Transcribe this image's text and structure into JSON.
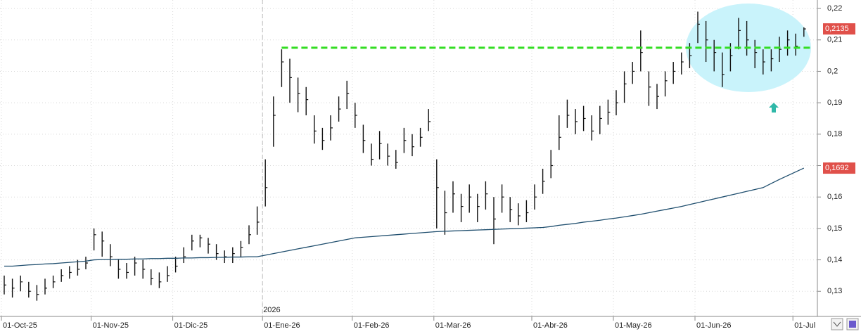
{
  "chart_data": {
    "type": "hlc",
    "categories": [
      "01-Oct-25",
      null,
      null,
      null,
      null,
      null,
      null,
      null,
      null,
      null,
      null,
      "01-Nov-25",
      null,
      null,
      null,
      null,
      null,
      null,
      null,
      null,
      null,
      "01-Dic-25",
      null,
      null,
      null,
      null,
      null,
      null,
      null,
      null,
      null,
      null,
      "01-Ene-26",
      null,
      null,
      null,
      null,
      null,
      null,
      null,
      null,
      null,
      null,
      "01-Feb-26",
      null,
      null,
      null,
      null,
      null,
      null,
      null,
      null,
      null,
      "01-Mar-26",
      null,
      null,
      null,
      null,
      null,
      null,
      null,
      null,
      null,
      null,
      null,
      "01-Abr-26",
      null,
      null,
      null,
      null,
      null,
      null,
      null,
      null,
      null,
      "01-May-26",
      null,
      null,
      null,
      null,
      null,
      null,
      null,
      null,
      null,
      "01-Jun-26",
      null,
      null,
      null,
      null,
      null,
      null,
      null,
      null,
      null,
      null,
      null,
      "01-Jul",
      null
    ],
    "series": [
      {
        "color": "#111111",
        "high": [
          0.135,
          0.134,
          0.135,
          0.133,
          0.132,
          0.134,
          0.135,
          0.137,
          0.138,
          0.14,
          0.141,
          0.15,
          0.149,
          0.145,
          0.14,
          0.139,
          0.141,
          0.14,
          0.137,
          0.136,
          0.138,
          0.141,
          0.144,
          0.148,
          0.148,
          0.147,
          0.145,
          0.143,
          0.144,
          0.146,
          0.151,
          0.157,
          0.172,
          0.192,
          0.207,
          0.204,
          0.198,
          0.195,
          0.186,
          0.182,
          0.186,
          0.192,
          0.197,
          0.19,
          0.183,
          0.177,
          0.181,
          0.177,
          0.175,
          0.182,
          0.18,
          0.182,
          0.188,
          0.172,
          0.162,
          0.165,
          0.161,
          0.164,
          0.161,
          0.165,
          0.16,
          0.164,
          0.16,
          0.158,
          0.159,
          0.164,
          0.169,
          0.175,
          0.186,
          0.191,
          0.188,
          0.189,
          0.186,
          0.189,
          0.191,
          0.194,
          0.2,
          0.203,
          0.213,
          0.2,
          0.196,
          0.2,
          0.203,
          0.206,
          0.209,
          0.219,
          0.216,
          0.21,
          0.206,
          0.209,
          0.217,
          0.216,
          0.21,
          0.207,
          0.207,
          0.211,
          0.213,
          0.212,
          0.214
        ],
        "low": [
          0.129,
          0.128,
          0.13,
          0.128,
          0.127,
          0.129,
          0.131,
          0.133,
          0.134,
          0.135,
          0.137,
          0.143,
          0.141,
          0.138,
          0.134,
          0.134,
          0.135,
          0.134,
          0.132,
          0.131,
          0.133,
          0.136,
          0.139,
          0.143,
          0.144,
          0.142,
          0.14,
          0.139,
          0.139,
          0.141,
          0.145,
          0.148,
          0.157,
          0.176,
          0.195,
          0.19,
          0.187,
          0.186,
          0.177,
          0.175,
          0.178,
          0.184,
          0.188,
          0.182,
          0.174,
          0.17,
          0.172,
          0.17,
          0.169,
          0.174,
          0.173,
          0.176,
          0.181,
          0.15,
          0.148,
          0.155,
          0.152,
          0.155,
          0.152,
          0.156,
          0.145,
          0.155,
          0.152,
          0.151,
          0.152,
          0.156,
          0.161,
          0.166,
          0.175,
          0.182,
          0.18,
          0.181,
          0.178,
          0.18,
          0.183,
          0.186,
          0.19,
          0.196,
          0.2,
          0.189,
          0.188,
          0.192,
          0.196,
          0.199,
          0.201,
          0.209,
          0.203,
          0.2,
          0.195,
          0.2,
          0.207,
          0.205,
          0.201,
          0.199,
          0.2,
          0.203,
          0.205,
          0.205,
          0.211
        ],
        "close": [
          0.132,
          0.131,
          0.133,
          0.13,
          0.129,
          0.131,
          0.133,
          0.135,
          0.136,
          0.137,
          0.139,
          0.148,
          0.146,
          0.141,
          0.137,
          0.136,
          0.139,
          0.137,
          0.134,
          0.133,
          0.135,
          0.138,
          0.141,
          0.146,
          0.147,
          0.145,
          0.142,
          0.141,
          0.142,
          0.144,
          0.148,
          0.152,
          0.163,
          0.186,
          0.203,
          0.198,
          0.193,
          0.191,
          0.181,
          0.178,
          0.182,
          0.188,
          0.193,
          0.186,
          0.178,
          0.172,
          0.177,
          0.173,
          0.171,
          0.178,
          0.176,
          0.179,
          0.184,
          0.163,
          0.155,
          0.161,
          0.157,
          0.16,
          0.157,
          0.161,
          0.153,
          0.16,
          0.156,
          0.154,
          0.155,
          0.16,
          0.165,
          0.17,
          0.179,
          0.186,
          0.184,
          0.185,
          0.181,
          0.185,
          0.187,
          0.19,
          0.196,
          0.2,
          0.206,
          0.195,
          0.192,
          0.197,
          0.2,
          0.203,
          0.205,
          0.215,
          0.21,
          0.206,
          0.199,
          0.205,
          0.213,
          0.21,
          0.206,
          0.203,
          0.204,
          0.207,
          0.21,
          0.208,
          0.2135
        ]
      },
      {
        "color": "#1f4e6e",
        "values": [
          0.138,
          0.138,
          0.1382,
          0.1384,
          0.1385,
          0.1387,
          0.1388,
          0.139,
          0.1392,
          0.1394,
          0.1396,
          0.14,
          0.1401,
          0.1401,
          0.1402,
          0.1402,
          0.1403,
          0.1403,
          0.1404,
          0.1404,
          0.1405,
          0.1405,
          0.1406,
          0.1406,
          0.1407,
          0.1407,
          0.1408,
          0.1408,
          0.1409,
          0.1409,
          0.141,
          0.141,
          0.1415,
          0.142,
          0.1425,
          0.143,
          0.1435,
          0.144,
          0.1445,
          0.145,
          0.1455,
          0.146,
          0.1465,
          0.147,
          0.1472,
          0.1474,
          0.1476,
          0.1478,
          0.148,
          0.1482,
          0.1484,
          0.1486,
          0.1488,
          0.149,
          0.1491,
          0.1492,
          0.1493,
          0.1494,
          0.1495,
          0.1496,
          0.1497,
          0.1498,
          0.1499,
          0.15,
          0.1501,
          0.1502,
          0.1503,
          0.1506,
          0.151,
          0.1513,
          0.1516,
          0.152,
          0.1523,
          0.1526,
          0.153,
          0.1533,
          0.1537,
          0.1541,
          0.1545,
          0.155,
          0.1555,
          0.156,
          0.1565,
          0.157,
          0.1576,
          0.1582,
          0.1588,
          0.1594,
          0.16,
          0.1606,
          0.1612,
          0.1618,
          0.1624,
          0.163,
          0.1643,
          0.1656,
          0.1668,
          0.168,
          0.1692
        ]
      }
    ],
    "price_labels": [
      {
        "value": 0.2135,
        "label": "0,2135"
      },
      {
        "value": 0.1692,
        "label": "0,1692"
      }
    ],
    "price_label_color": "#e0504a",
    "hline": {
      "value": 0.2075,
      "color": "#33dd22"
    },
    "year_marker": "2026",
    "ylim": [
      0.122,
      0.2227
    ],
    "yticks": [
      {
        "value": 0.13,
        "label": "0,13"
      },
      {
        "value": 0.14,
        "label": "0,14"
      },
      {
        "value": 0.15,
        "label": "0,15"
      },
      {
        "value": 0.16,
        "label": "0,16"
      },
      {
        "value": 0.17,
        "label": "0,17"
      },
      {
        "value": 0.18,
        "label": "0,18"
      },
      {
        "value": 0.19,
        "label": "0,19"
      },
      {
        "value": 0.2,
        "label": "0,2"
      },
      {
        "value": 0.21,
        "label": "0,21"
      },
      {
        "value": 0.22,
        "label": "0,22"
      }
    ],
    "grid": true
  }
}
